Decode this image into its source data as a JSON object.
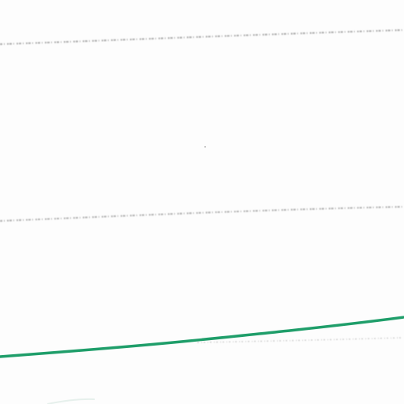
{
  "scene": {
    "description": "",
    "background_color": "#fdfdfd",
    "dotted_rule_color": "#9a9a9a",
    "ink_line_color": "#1f9e6a",
    "icons": [
      "pen-stroke-icon"
    ]
  }
}
